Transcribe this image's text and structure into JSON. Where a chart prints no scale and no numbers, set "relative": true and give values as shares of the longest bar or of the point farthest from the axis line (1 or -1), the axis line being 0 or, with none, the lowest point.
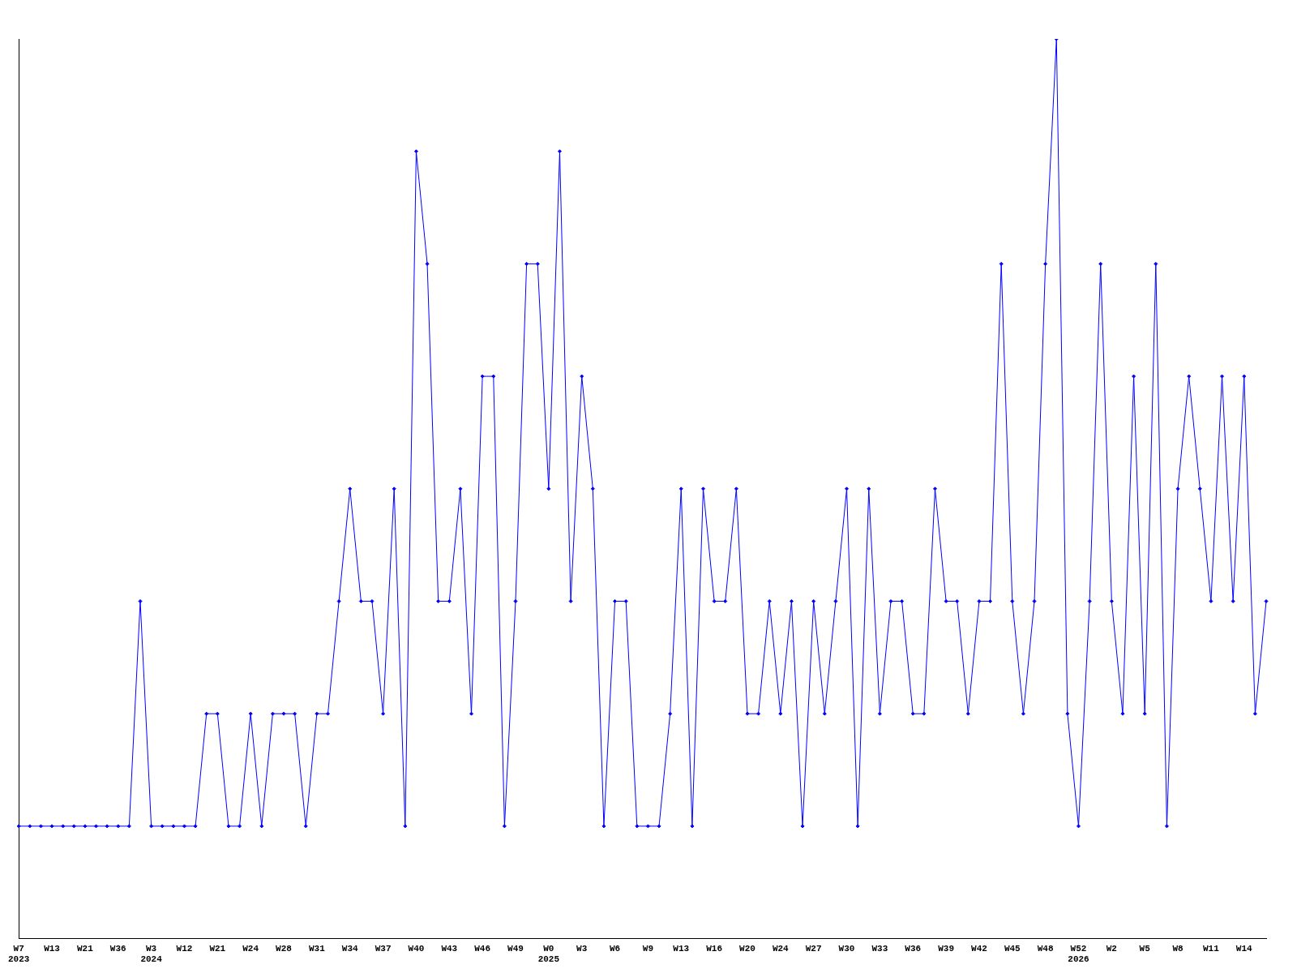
{
  "chart_data": {
    "type": "line",
    "relative": true,
    "color": "#0000ff",
    "marker": "diamond",
    "grid": false,
    "legend": false,
    "categories": [
      "W7\n2023",
      null,
      null,
      "W13",
      null,
      null,
      "W21",
      null,
      null,
      "W36",
      null,
      null,
      "W3\n2024",
      null,
      null,
      "W12",
      null,
      null,
      "W21",
      null,
      null,
      "W24",
      null,
      null,
      "W28",
      null,
      null,
      "W31",
      null,
      null,
      "W34",
      null,
      null,
      "W37",
      null,
      null,
      "W40",
      null,
      null,
      "W43",
      null,
      null,
      "W46",
      null,
      null,
      "W49",
      null,
      null,
      "W0\n2025",
      null,
      null,
      "W3",
      null,
      null,
      "W6",
      null,
      null,
      "W9",
      null,
      null,
      "W13",
      null,
      null,
      "W16",
      null,
      null,
      "W20",
      null,
      null,
      "W24",
      null,
      null,
      "W27",
      null,
      null,
      "W30",
      null,
      null,
      "W33",
      null,
      null,
      "W36",
      null,
      null,
      "W39",
      null,
      null,
      "W42",
      null,
      null,
      "W45",
      null,
      null,
      "W48",
      null,
      null,
      "W52\n2026",
      null,
      null,
      "W2",
      null,
      null,
      "W5",
      null,
      null,
      "W8",
      null,
      null,
      "W11",
      null,
      null,
      "W14",
      null,
      null
    ],
    "values": [
      0.125,
      0.125,
      0.125,
      0.125,
      0.125,
      0.125,
      0.125,
      0.125,
      0.125,
      0.125,
      0.125,
      0.375,
      0.125,
      0.125,
      0.125,
      0.125,
      0.125,
      0.25,
      0.25,
      0.125,
      0.125,
      0.25,
      0.125,
      0.25,
      0.25,
      0.25,
      0.125,
      0.25,
      0.25,
      0.375,
      0.5,
      0.375,
      0.375,
      0.25,
      0.5,
      0.125,
      0.875,
      0.75,
      0.375,
      0.375,
      0.5,
      0.25,
      0.625,
      0.625,
      0.125,
      0.375,
      0.75,
      0.75,
      0.5,
      0.875,
      0.375,
      0.625,
      0.5,
      0.125,
      0.375,
      0.375,
      0.125,
      0.125,
      0.125,
      0.25,
      0.5,
      0.125,
      0.5,
      0.375,
      0.375,
      0.5,
      0.25,
      0.25,
      0.375,
      0.25,
      0.375,
      0.125,
      0.375,
      0.25,
      0.375,
      0.5,
      0.125,
      0.5,
      0.25,
      0.375,
      0.375,
      0.25,
      0.25,
      0.5,
      0.375,
      0.375,
      0.25,
      0.375,
      0.375,
      0.75,
      0.375,
      0.25,
      0.375,
      0.75,
      1,
      0.25,
      0.125,
      0.375,
      0.75,
      0.375,
      0.25,
      0.625,
      0.25,
      0.75,
      0.125,
      0.5,
      0.625,
      0.5,
      0.375,
      0.625,
      0.375,
      0.625,
      0.25,
      0.375
    ]
  }
}
